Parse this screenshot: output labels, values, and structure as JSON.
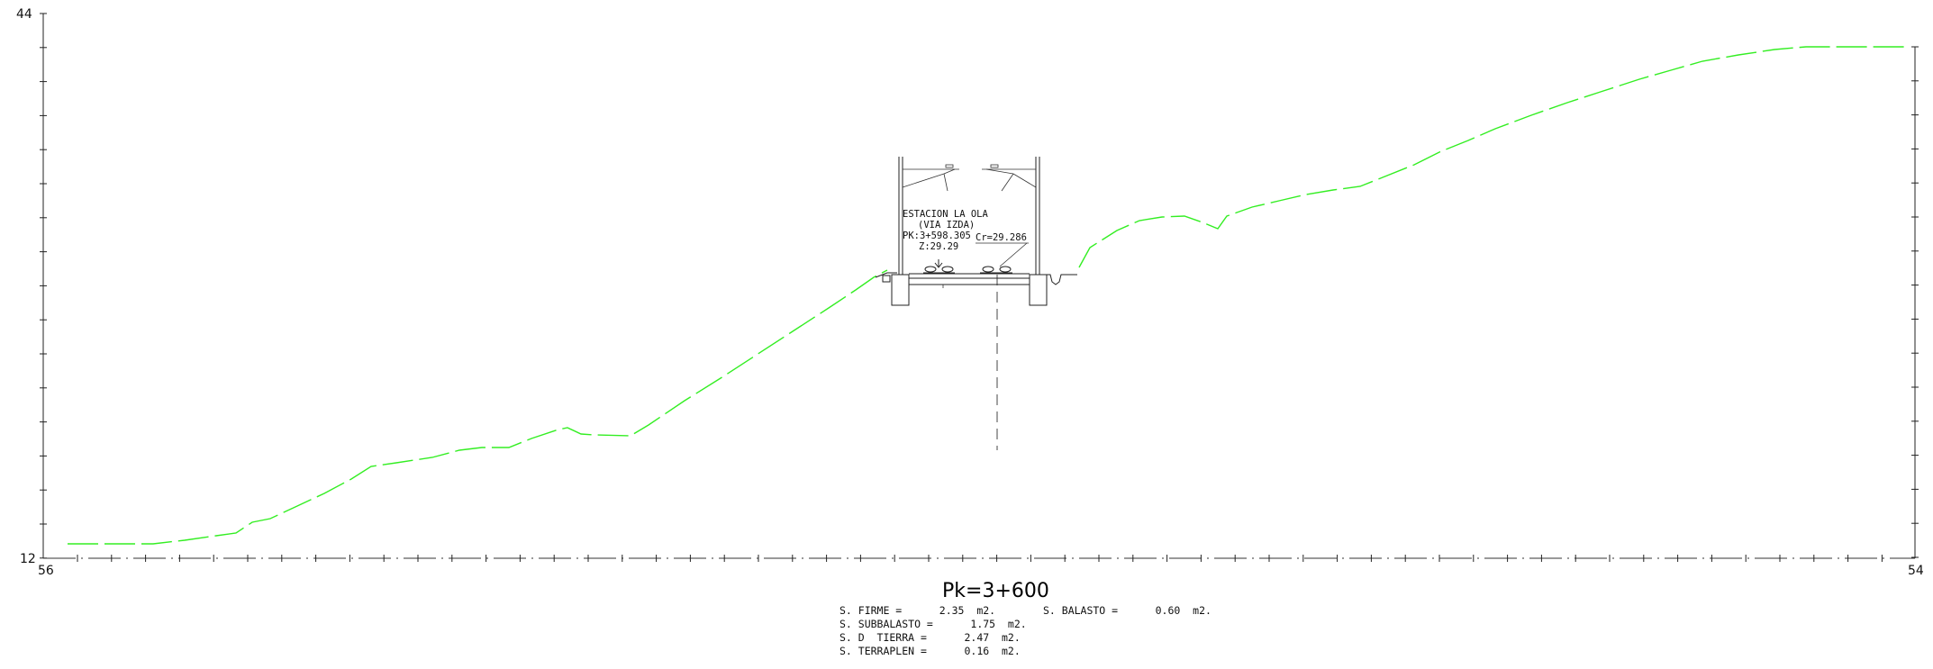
{
  "axes": {
    "y_top_label": "44",
    "y_bottom_label": "12",
    "x_left_label": "56",
    "x_right_label": "54"
  },
  "station_note": {
    "line1": "ESTACION LA OLA",
    "line2": "(VIA IZDA)",
    "line3": "PK:3+598.305",
    "line4": "Z:29.29",
    "cota": "Cr=29.286"
  },
  "section": {
    "title": "Pk=3+600"
  },
  "areas": {
    "firme": "S. FIRME =      2.35  m2.",
    "balasto": "S. BALASTO =      0.60  m2.",
    "subbalasto": "S. SUBBALASTO =      1.75  m2.",
    "tierra": "S. D  TIERRA =      2.47  m2.",
    "terraplen": "S. TERRAPLEN =      0.16  m2."
  },
  "colors": {
    "terrain": "#33ee22",
    "linework": "#222222"
  }
}
